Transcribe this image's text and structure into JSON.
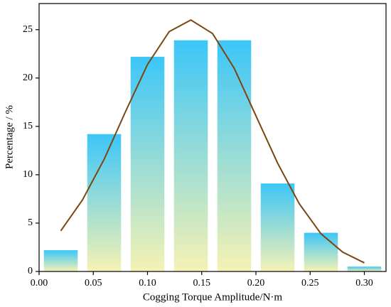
{
  "chart_data": {
    "type": "histogram",
    "x_label": "Cogging Torque Amplitude/N·m",
    "y_label": "Percentage / %",
    "bins": [
      0,
      0.04,
      0.08,
      0.12,
      0.16,
      0.2,
      0.24,
      0.28,
      0.32
    ],
    "values": [
      2.2,
      14.2,
      22.2,
      23.9,
      23.9,
      9.1,
      4.0,
      0.5
    ],
    "fit": {
      "x": [
        0.02,
        0.04,
        0.06,
        0.08,
        0.1,
        0.12,
        0.14,
        0.16,
        0.18,
        0.2,
        0.22,
        0.24,
        0.26,
        0.28,
        0.3
      ],
      "values": [
        4.2,
        7.4,
        11.6,
        16.6,
        21.4,
        24.8,
        26.0,
        24.6,
        21.0,
        16.1,
        11.2,
        7.0,
        3.9,
        2.0,
        0.9
      ],
      "color": "#7a4512"
    },
    "bar_colors": [
      "#3cc6f8",
      "#f6f2b4"
    ],
    "xlim": [
      0,
      0.32
    ],
    "ylim": [
      0,
      27.7
    ],
    "xticks": [
      {
        "value": 0,
        "label": "0.00"
      },
      {
        "value": 0.05,
        "label": "0.05"
      },
      {
        "value": 0.1,
        "label": "0.10"
      },
      {
        "value": 0.15,
        "label": "0.15"
      },
      {
        "value": 0.2,
        "label": "0.20"
      },
      {
        "value": 0.25,
        "label": "0.25"
      },
      {
        "value": 0.3,
        "label": "0.30"
      }
    ],
    "yticks": [
      0,
      5,
      10,
      15,
      20,
      25
    ]
  }
}
